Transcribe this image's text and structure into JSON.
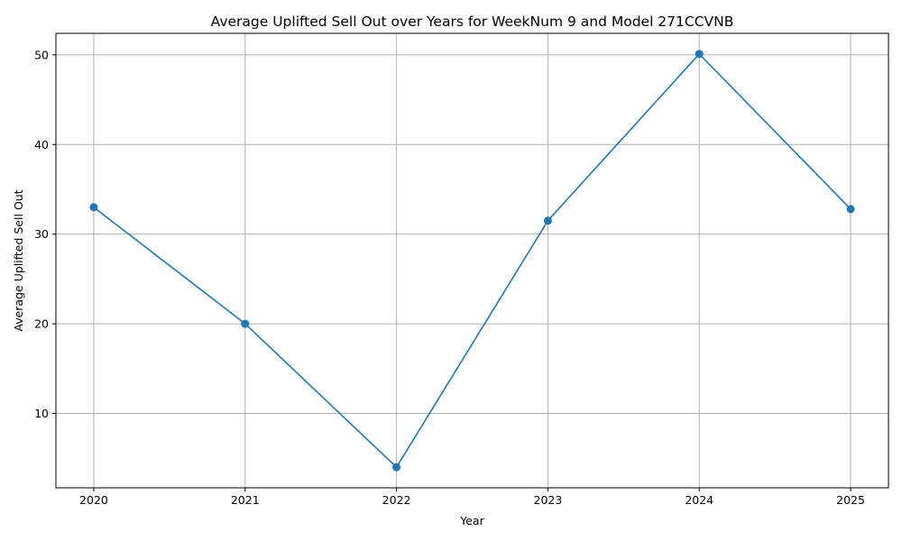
{
  "chart_data": {
    "type": "line",
    "title": "Average Uplifted Sell Out over Years for WeekNum 9 and Model 271CCVNB",
    "xlabel": "Year",
    "ylabel": "Average Uplifted Sell Out",
    "x": [
      2020,
      2021,
      2022,
      2023,
      2024,
      2025
    ],
    "series": [
      {
        "values": [
          33.0,
          20.0,
          4.0,
          31.5,
          50.1,
          32.8
        ]
      }
    ],
    "xticks": [
      "2020",
      "2021",
      "2022",
      "2023",
      "2024",
      "2025"
    ],
    "yticks": [
      "10",
      "20",
      "30",
      "40",
      "50"
    ],
    "ylim": [
      1.7,
      52.4
    ],
    "xlim": [
      2019.75,
      2025.25
    ],
    "grid": true,
    "line_color": "#1f77b4",
    "marker": "circle"
  }
}
